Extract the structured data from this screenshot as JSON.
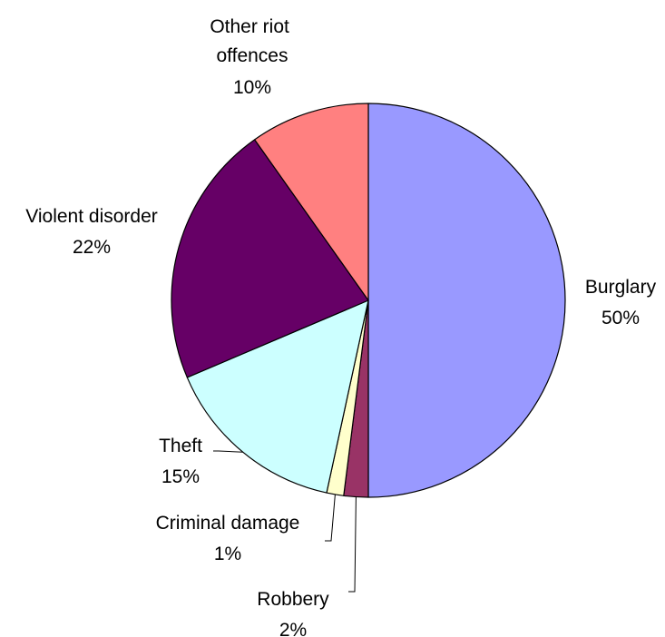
{
  "chart_data": {
    "type": "pie",
    "title": "",
    "start_angle_deg": 0,
    "direction": "clockwise",
    "slices": [
      {
        "label": "Burglary",
        "pct_label": "50%",
        "value": 50,
        "color": "#9999ff"
      },
      {
        "label": "Robbery",
        "pct_label": "2%",
        "value": 2,
        "color": "#993366"
      },
      {
        "label": "Criminal damage",
        "pct_label": "1%",
        "value": 1.4,
        "color": "#ffffcc"
      },
      {
        "label": "Theft",
        "pct_label": "15%",
        "value": 15.2,
        "color": "#ccffff"
      },
      {
        "label": "Violent disorder",
        "pct_label": "22%",
        "value": 21.6,
        "color": "#660066"
      },
      {
        "label": "Other riot offences",
        "pct_label": "10%",
        "value": 9.8,
        "color": "#ff8080"
      }
    ]
  }
}
